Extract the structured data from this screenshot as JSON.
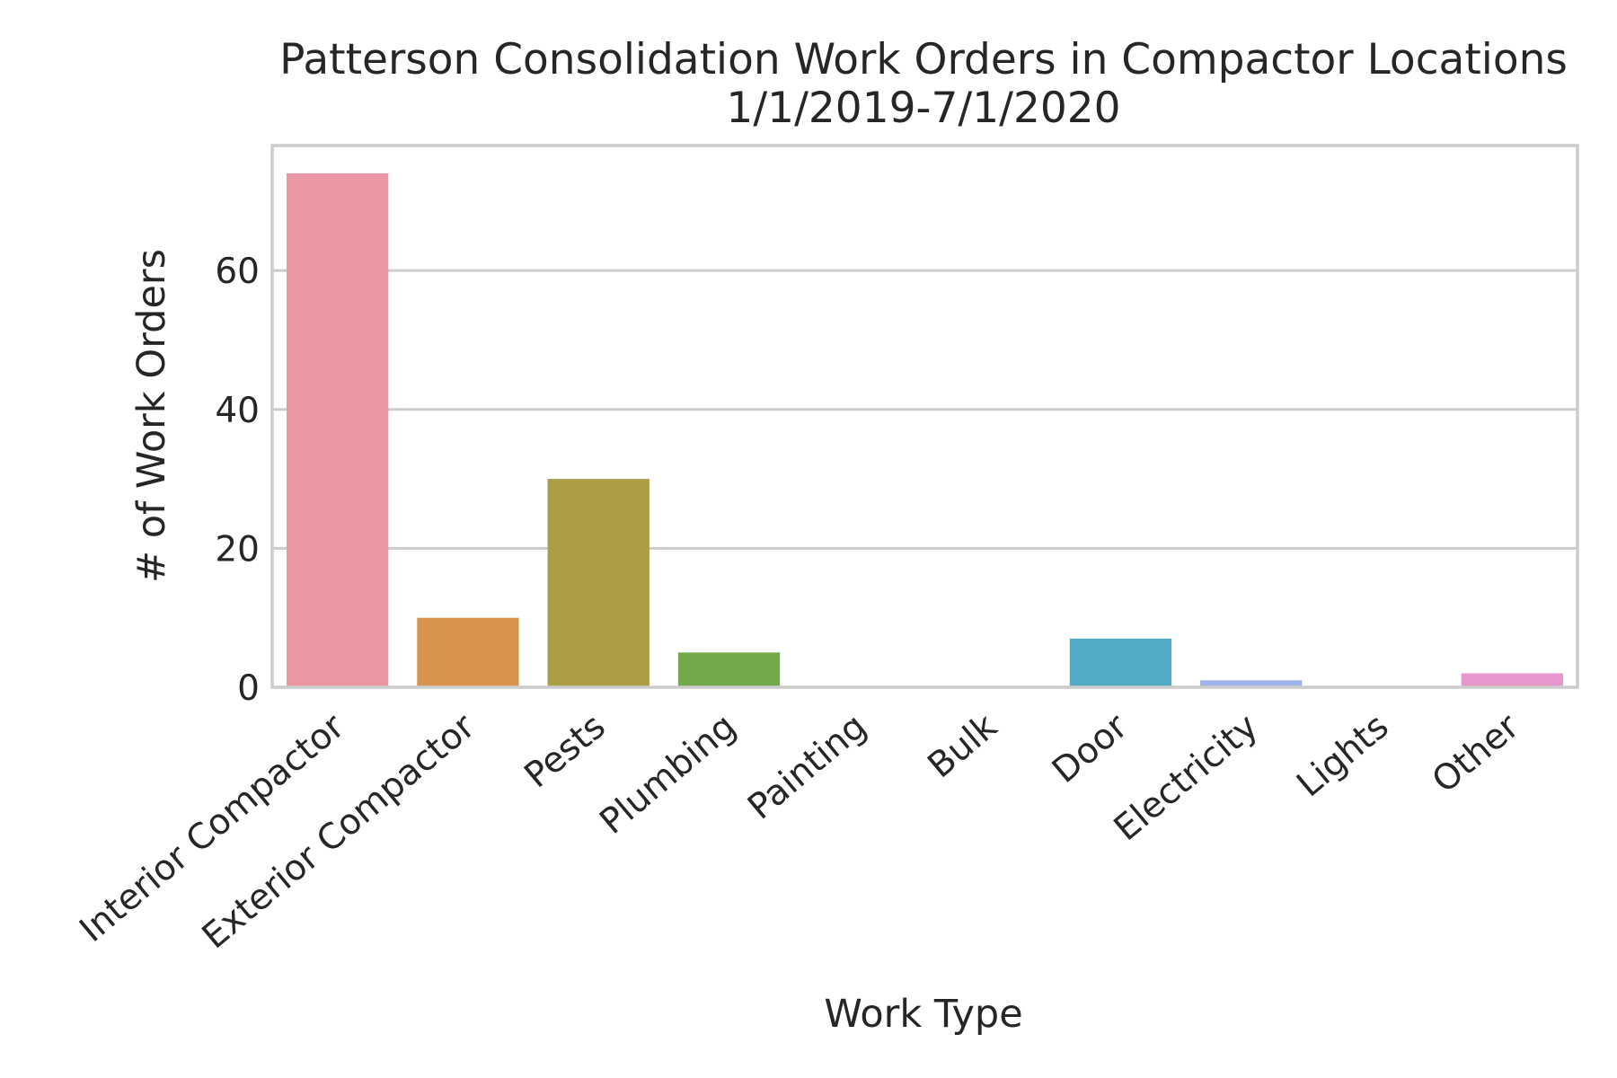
{
  "chart_data": {
    "type": "bar",
    "title": "Patterson Consolidation Work Orders in Compactor Locations",
    "subtitle": "1/1/2019-7/1/2020",
    "xlabel": "Work Type",
    "ylabel": "# of Work Orders",
    "categories": [
      "Interior Compactor",
      "Exterior Compactor",
      "Pests",
      "Plumbing",
      "Painting",
      "Bulk",
      "Door",
      "Electricity",
      "Lights",
      "Other"
    ],
    "values": [
      74,
      10,
      30,
      5,
      0,
      0,
      7,
      1,
      0,
      2
    ],
    "colors": [
      "#ea96a3",
      "#d8944f",
      "#ab9e47",
      "#72aa4b",
      "#4fae7f",
      "#53ab9f",
      "#51abc5",
      "#a0b3e8",
      "#d298e6",
      "#e897cc"
    ],
    "ylim": [
      0,
      78
    ],
    "yticks": [
      0,
      20,
      40,
      60
    ],
    "grid": true,
    "legend": "none"
  }
}
